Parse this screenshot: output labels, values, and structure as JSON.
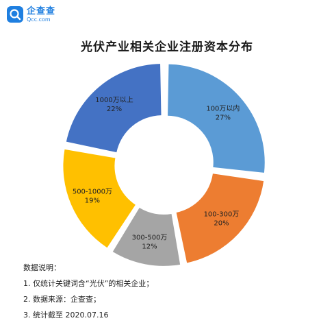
{
  "header": {
    "logo_name": "企查查",
    "logo_domain": "Qcc.com"
  },
  "chart_data": {
    "type": "pie",
    "title": "光伏产业相关企业注册资本分布",
    "donut": true,
    "categories": [
      "100万以内",
      "100-300万",
      "300-500万",
      "500-1000万",
      "1000万以上"
    ],
    "values": [
      27,
      20,
      12,
      19,
      22
    ],
    "value_labels": [
      "27%",
      "20%",
      "12%",
      "19%",
      "22%"
    ],
    "colors": [
      "#5b9bd5",
      "#ed7d31",
      "#a5a5a5",
      "#ffc000",
      "#4472c4"
    ],
    "legend": "none"
  },
  "notes": {
    "heading": "数据说明：",
    "items": [
      "1. 仅统计关键词含“光伏”的相关企业；",
      "2. 数据来源：企查查；",
      "3. 统计截至 2020.07.16"
    ]
  }
}
